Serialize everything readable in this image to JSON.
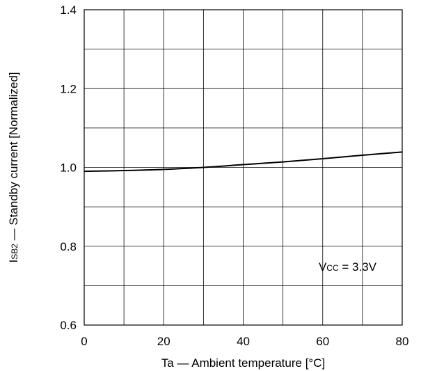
{
  "chart_data": {
    "type": "line",
    "xlabel": "Ta — Ambient temperature [°C]",
    "ylabel": {
      "prefix": "I",
      "subscript": "SB2",
      "rest": " — Standby current [Normalized]"
    },
    "xlim": [
      0,
      80
    ],
    "ylim": [
      0.6,
      1.4
    ],
    "x_ticks": [
      "0",
      "20",
      "40",
      "60",
      "80"
    ],
    "y_ticks": [
      "0.6",
      "0.8",
      "1.0",
      "1.2",
      "1.4"
    ],
    "grid": true,
    "annotation": {
      "prefix": "V",
      "subscript": "CC",
      "rest": " = 3.3V"
    },
    "series": [
      {
        "x": [
          0,
          10,
          20,
          30,
          40,
          50,
          60,
          70,
          80
        ],
        "y": [
          0.99,
          0.992,
          0.995,
          1.0,
          1.007,
          1.014,
          1.022,
          1.031,
          1.039
        ]
      }
    ]
  }
}
